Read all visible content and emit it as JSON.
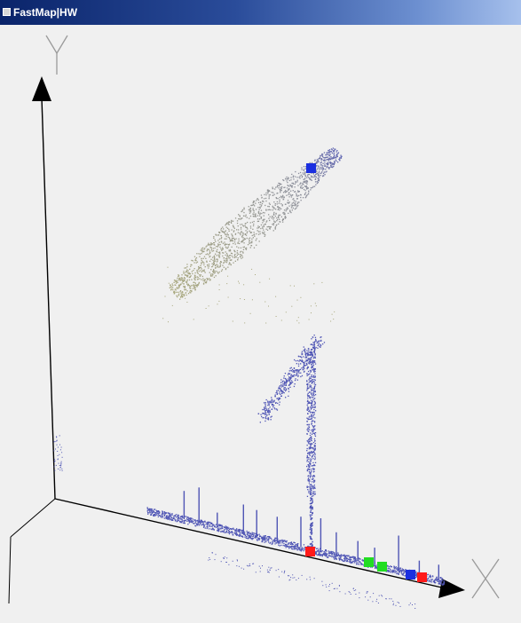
{
  "window": {
    "title": "FastMap|HW"
  },
  "axes": {
    "x_label": "X",
    "y_label": "Y"
  },
  "colors": {
    "background": "#f0f0f0",
    "titlebar_start": "#0a246a",
    "titlebar_end": "#a6c0ec",
    "point_blue": "#4f55b5",
    "point_olive": "#a8a77c",
    "point_gray": "#8c8f9e",
    "marker_red": "#ff1a1a",
    "marker_green": "#22dd22",
    "marker_blue": "#1b2fe0",
    "axis_line": "#000000"
  },
  "markers": [
    {
      "name": "marker-blue-top",
      "color": "blue"
    },
    {
      "name": "marker-red-mid",
      "color": "red"
    },
    {
      "name": "marker-green-1",
      "color": "green"
    },
    {
      "name": "marker-green-2",
      "color": "green"
    },
    {
      "name": "marker-blue-right",
      "color": "blue"
    },
    {
      "name": "marker-red-right",
      "color": "red"
    }
  ]
}
